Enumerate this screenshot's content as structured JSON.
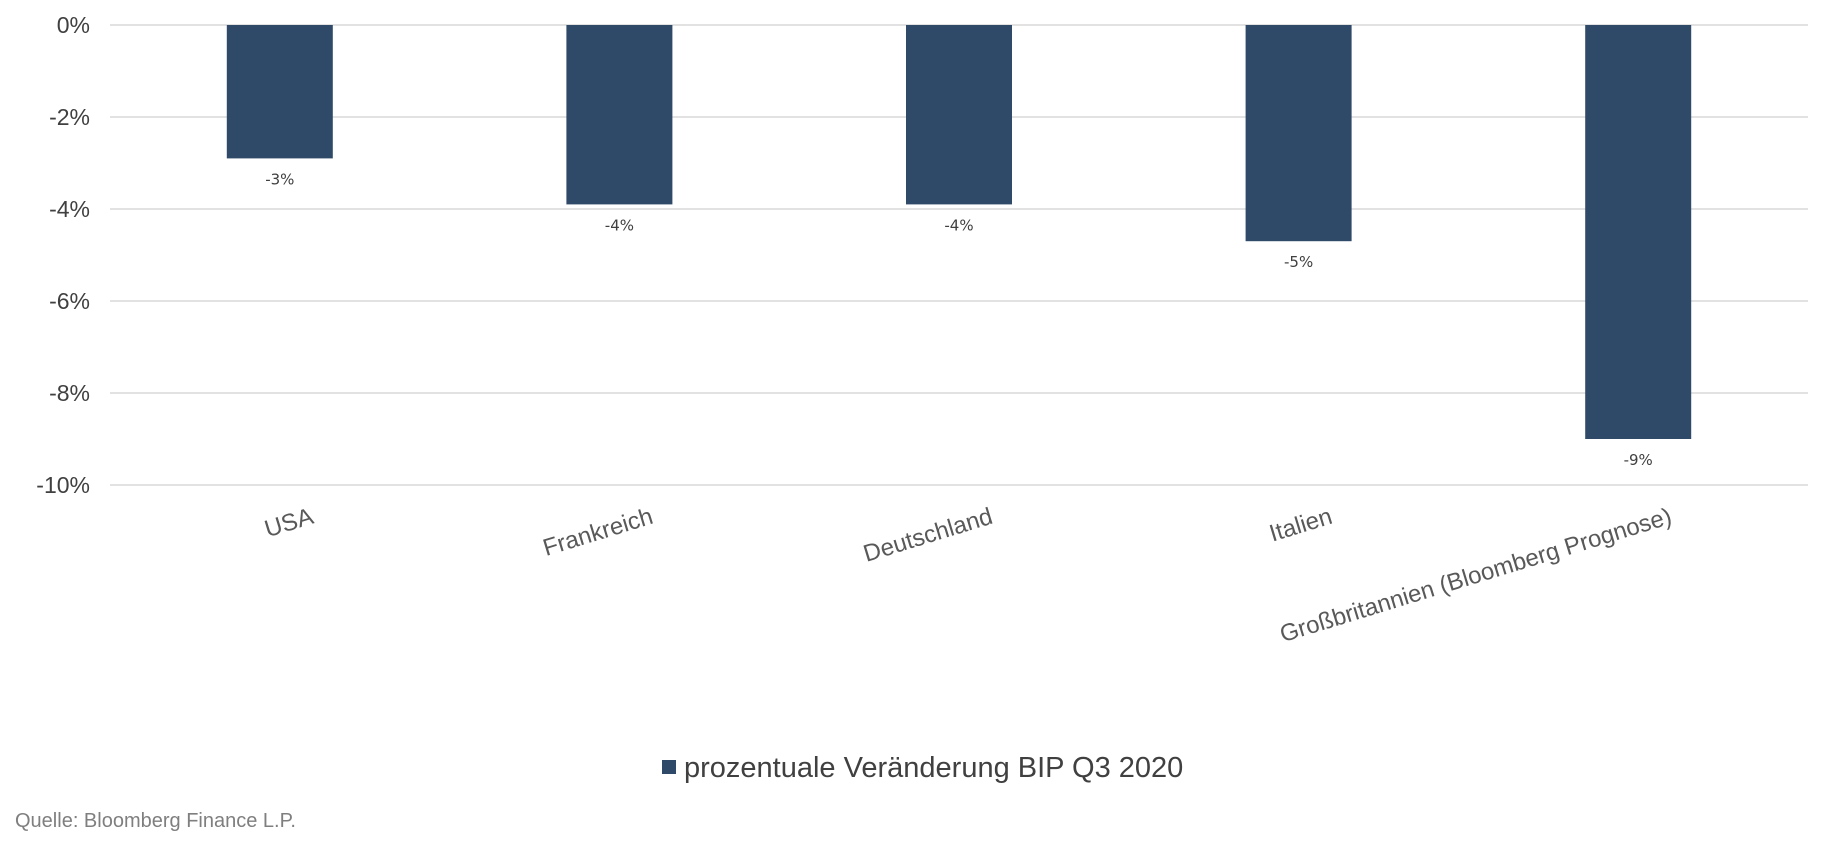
{
  "chart_data": {
    "type": "bar",
    "categories": [
      "USA",
      "Frankreich",
      "Deutschland",
      "Italien",
      "Großbritannien (Bloomberg Prognose)"
    ],
    "series": [
      {
        "name": "prozentuale Veränderung BIP Q3 2020",
        "values": [
          -2.9,
          -3.9,
          -3.9,
          -4.7,
          -9.0
        ],
        "data_labels": [
          "-3%",
          "-4%",
          "-4%",
          "-5%",
          "-9%"
        ],
        "color": "#2e4a68"
      }
    ],
    "y_ticks": [
      {
        "value": 0,
        "label": "0%"
      },
      {
        "value": -2,
        "label": "-2%"
      },
      {
        "value": -4,
        "label": "-4%"
      },
      {
        "value": -6,
        "label": "-6%"
      },
      {
        "value": -8,
        "label": "-8%"
      },
      {
        "value": -10,
        "label": "-10%"
      }
    ],
    "ylim": [
      -10,
      0
    ],
    "grid": true,
    "legend": "bottom-center"
  },
  "source": "Quelle: Bloomberg Finance L.P."
}
